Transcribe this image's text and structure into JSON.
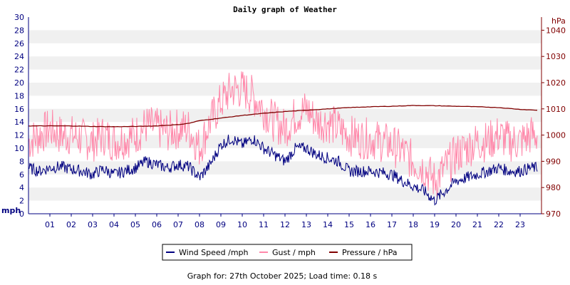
{
  "chart_data": {
    "type": "line",
    "title": "Daily graph of Weather",
    "y_left": {
      "unit": "mph",
      "range": [
        0,
        30
      ],
      "ticks": [
        "0",
        "2",
        "4",
        "6",
        "8",
        "10",
        "12",
        "14",
        "16",
        "18",
        "20",
        "22",
        "24",
        "26",
        "28",
        "30"
      ]
    },
    "y_right": {
      "unit": "hPa",
      "range": [
        970,
        1045
      ],
      "ticks": [
        "970",
        "980",
        "990",
        "1000",
        "1010",
        "1020",
        "1030",
        "1040"
      ]
    },
    "x": {
      "range": [
        0,
        24
      ],
      "ticks": [
        "01",
        "02",
        "03",
        "04",
        "05",
        "06",
        "07",
        "08",
        "09",
        "10",
        "11",
        "12",
        "13",
        "14",
        "15",
        "16",
        "17",
        "18",
        "19",
        "20",
        "21",
        "22",
        "23"
      ]
    },
    "grid": "horizontal bands",
    "legend_position": "bottom",
    "series": [
      {
        "name": "Wind Speed /mph",
        "axis": "left",
        "color": "#000080",
        "x": [
          0,
          0.5,
          1,
          1.5,
          2,
          2.5,
          3,
          3.5,
          4,
          4.5,
          5,
          5.5,
          6,
          6.5,
          7,
          7.5,
          8,
          8.5,
          9,
          9.5,
          10,
          10.5,
          11,
          11.5,
          12,
          12.5,
          13,
          13.5,
          14,
          14.5,
          15,
          15.5,
          16,
          16.5,
          17,
          17.5,
          18,
          18.5,
          19,
          19.5,
          20,
          20.5,
          21,
          21.5,
          22,
          22.5,
          23,
          23.5,
          23.8
        ],
        "values": [
          7,
          6.5,
          7,
          7.2,
          6.8,
          6.5,
          6,
          6.8,
          6,
          6.5,
          7,
          8,
          7.5,
          7,
          7.5,
          7.2,
          5.5,
          7.5,
          10.5,
          11.5,
          10.5,
          11.5,
          10,
          9,
          8,
          10,
          10,
          9,
          8.5,
          8,
          6.5,
          6.5,
          6.5,
          6.3,
          6,
          5,
          4.2,
          3.5,
          2,
          3.5,
          5,
          5.5,
          6,
          6.5,
          7,
          6.5,
          6.5,
          7,
          7
        ]
      },
      {
        "name": "Gust / mph",
        "axis": "left",
        "color": "#ff88aa",
        "x": [
          0,
          0.5,
          1,
          1.5,
          2,
          2.5,
          3,
          3.5,
          4,
          4.5,
          5,
          5.5,
          6,
          6.5,
          7,
          7.5,
          8,
          8.5,
          9,
          9.5,
          10,
          10.5,
          11,
          11.5,
          12,
          12.5,
          13,
          13.5,
          14,
          14.5,
          15,
          15.5,
          16,
          16.5,
          17,
          17.5,
          18,
          18.5,
          19,
          19.5,
          20,
          20.5,
          21,
          21.5,
          22,
          22.5,
          23,
          23.5,
          23.8
        ],
        "values": [
          11,
          12,
          13,
          12,
          12,
          11.5,
          11,
          12,
          11,
          11.5,
          12,
          13.5,
          13,
          12.5,
          13,
          13,
          10,
          14,
          17,
          19,
          19,
          18,
          16,
          14,
          13,
          15,
          16,
          14,
          14,
          13,
          12,
          11.5,
          11.5,
          11,
          10.5,
          9.5,
          8,
          7,
          5,
          7,
          9,
          10,
          11,
          11,
          12,
          11,
          11,
          12,
          12
        ]
      },
      {
        "name": "Pressure / hPa",
        "axis": "right",
        "color": "#800000",
        "x": [
          0,
          1,
          2,
          3,
          4,
          5,
          6,
          7,
          7.5,
          8,
          9,
          10,
          11,
          12,
          13,
          14,
          15,
          16,
          17,
          18,
          19,
          20,
          21,
          22,
          23,
          23.8
        ],
        "values": [
          1003.5,
          1003.5,
          1003.5,
          1003.3,
          1003.2,
          1003.3,
          1003.5,
          1004,
          1004.5,
          1005.5,
          1006.5,
          1007.5,
          1008.3,
          1009,
          1009.5,
          1010,
          1010.5,
          1010.8,
          1011,
          1011.3,
          1011.2,
          1011,
          1010.8,
          1010.5,
          1009.8,
          1009.5
        ]
      }
    ],
    "footer": "Graph for: 27th October 2025; Load time: 0.18 s"
  }
}
